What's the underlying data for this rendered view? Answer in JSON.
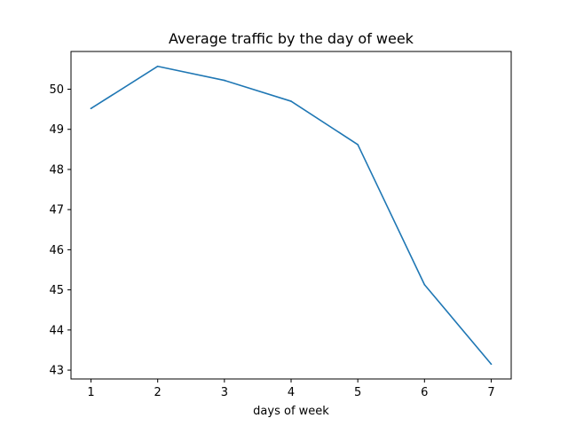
{
  "chart_data": {
    "type": "line",
    "title": "Average traffic by the day of week",
    "xlabel": "days of week",
    "ylabel": "",
    "x": [
      1,
      2,
      3,
      4,
      5,
      6,
      7
    ],
    "series": [
      {
        "values": [
          49.52,
          50.57,
          50.22,
          49.7,
          48.62,
          45.13,
          43.15
        ],
        "color": "#1f77b4"
      }
    ],
    "xlim": [
      0.7,
      7.3
    ],
    "ylim": [
      42.78,
      50.94
    ],
    "xticks": [
      1,
      2,
      3,
      4,
      5,
      6,
      7
    ],
    "yticks": [
      43,
      44,
      45,
      46,
      47,
      48,
      49,
      50
    ],
    "grid": false,
    "legend": "none"
  }
}
